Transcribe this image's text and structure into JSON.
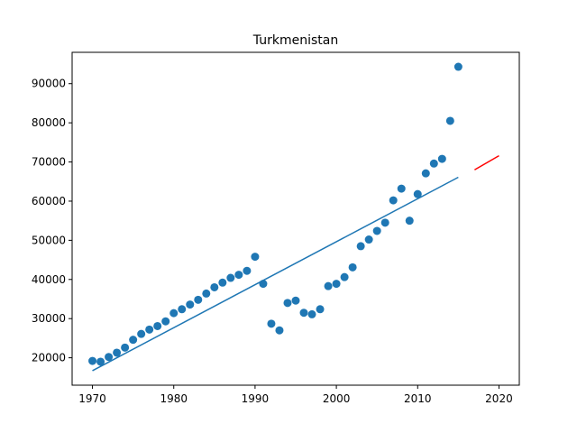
{
  "chart_data": {
    "type": "scatter",
    "title": "Turkmenistan",
    "xlabel": "",
    "ylabel": "",
    "xlim": [
      1967.5,
      2022.5
    ],
    "ylim": [
      13000,
      98000
    ],
    "x_ticks": [
      1970,
      1980,
      1990,
      2000,
      2010,
      2020
    ],
    "y_ticks": [
      20000,
      30000,
      40000,
      50000,
      60000,
      70000,
      80000,
      90000
    ],
    "grid": false,
    "colors": {
      "points": "#1f77b4",
      "fit": "#1f77b4",
      "forecast": "#ff0000"
    },
    "series": [
      {
        "type": "scatter",
        "points": [
          [
            1970,
            19200
          ],
          [
            1971,
            19000
          ],
          [
            1972,
            20200
          ],
          [
            1973,
            21300
          ],
          [
            1974,
            22600
          ],
          [
            1975,
            24600
          ],
          [
            1976,
            26100
          ],
          [
            1977,
            27200
          ],
          [
            1978,
            28100
          ],
          [
            1979,
            29300
          ],
          [
            1980,
            31400
          ],
          [
            1981,
            32400
          ],
          [
            1982,
            33600
          ],
          [
            1983,
            34800
          ],
          [
            1984,
            36400
          ],
          [
            1985,
            38000
          ],
          [
            1986,
            39200
          ],
          [
            1987,
            40400
          ],
          [
            1988,
            41200
          ],
          [
            1989,
            42200
          ],
          [
            1990,
            45800
          ],
          [
            1991,
            38900
          ],
          [
            1992,
            28700
          ],
          [
            1993,
            27000
          ],
          [
            1994,
            34000
          ],
          [
            1995,
            34600
          ],
          [
            1996,
            31500
          ],
          [
            1997,
            31100
          ],
          [
            1998,
            32400
          ],
          [
            1999,
            38300
          ],
          [
            2000,
            38900
          ],
          [
            2001,
            40600
          ],
          [
            2002,
            43100
          ],
          [
            2003,
            48500
          ],
          [
            2004,
            50200
          ],
          [
            2005,
            52400
          ],
          [
            2006,
            54500
          ],
          [
            2007,
            60200
          ],
          [
            2008,
            63200
          ],
          [
            2009,
            55000
          ],
          [
            2010,
            61800
          ],
          [
            2011,
            67100
          ],
          [
            2012,
            69600
          ],
          [
            2013,
            70800
          ],
          [
            2014,
            80500
          ],
          [
            2015,
            94300
          ]
        ]
      },
      {
        "type": "line",
        "points": [
          [
            1970,
            16700
          ],
          [
            2015,
            66100
          ]
        ]
      },
      {
        "type": "line",
        "points": [
          [
            2017,
            68000
          ],
          [
            2020,
            71600
          ]
        ]
      }
    ]
  }
}
